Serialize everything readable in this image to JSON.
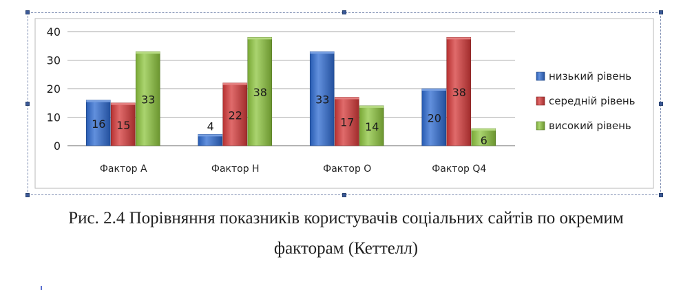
{
  "chart_data": {
    "type": "bar",
    "categories": [
      "Фактор А",
      "Фактор Н",
      "Фактор О",
      "Фактор Q4"
    ],
    "series": [
      {
        "name": "низький рівень",
        "values": [
          16,
          4,
          33,
          20
        ],
        "color": "#2e6bd1"
      },
      {
        "name": "середній рівень",
        "values": [
          15,
          22,
          17,
          38
        ],
        "color": "#d63a3a"
      },
      {
        "name": "високий рівень",
        "values": [
          33,
          38,
          14,
          6
        ],
        "color": "#8ec63f"
      }
    ],
    "yticks": [
      "0",
      "10",
      "20",
      "30",
      "40"
    ],
    "ylim": [
      0,
      40
    ],
    "grid": true,
    "legend_position": "right"
  },
  "caption": {
    "line1": "Рис. 2.4 Порівняння показників користувачів соціальних сайтів по окремим",
    "line2": "факторам (Кеттелл)"
  }
}
